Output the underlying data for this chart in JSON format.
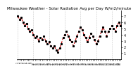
{
  "title": "Milwaukee Weather - Solar Radiation Avg per Day W/m2/minute",
  "line_color": "#cc0000",
  "dot_color": "#000000",
  "background_color": "#ffffff",
  "grid_color": "#999999",
  "values": [
    7.0,
    6.5,
    6.8,
    6.0,
    5.5,
    5.8,
    5.0,
    4.5,
    4.8,
    4.0,
    3.5,
    3.8,
    3.0,
    3.5,
    3.2,
    3.8,
    3.0,
    2.5,
    2.8,
    2.2,
    1.8,
    2.2,
    1.5,
    1.2,
    1.8,
    2.5,
    3.5,
    4.0,
    4.5,
    3.8,
    3.2,
    2.8,
    2.2,
    3.0,
    3.8,
    4.5,
    5.2,
    4.8,
    4.0,
    3.5,
    2.8,
    3.5,
    4.2,
    3.8,
    3.2,
    2.5,
    3.0,
    3.8,
    4.5,
    5.2,
    4.5,
    3.8,
    4.5,
    5.0,
    5.5,
    5.0,
    4.5,
    5.5,
    6.0,
    5.5
  ],
  "ylim": [
    0,
    8
  ],
  "yticks": [
    1,
    2,
    3,
    4,
    5,
    6,
    7
  ],
  "ylabel_fontsize": 3.5,
  "title_fontsize": 4.0,
  "tick_fontsize": 2.5,
  "grid_positions": [
    0,
    9,
    18,
    27,
    36,
    45,
    54
  ]
}
